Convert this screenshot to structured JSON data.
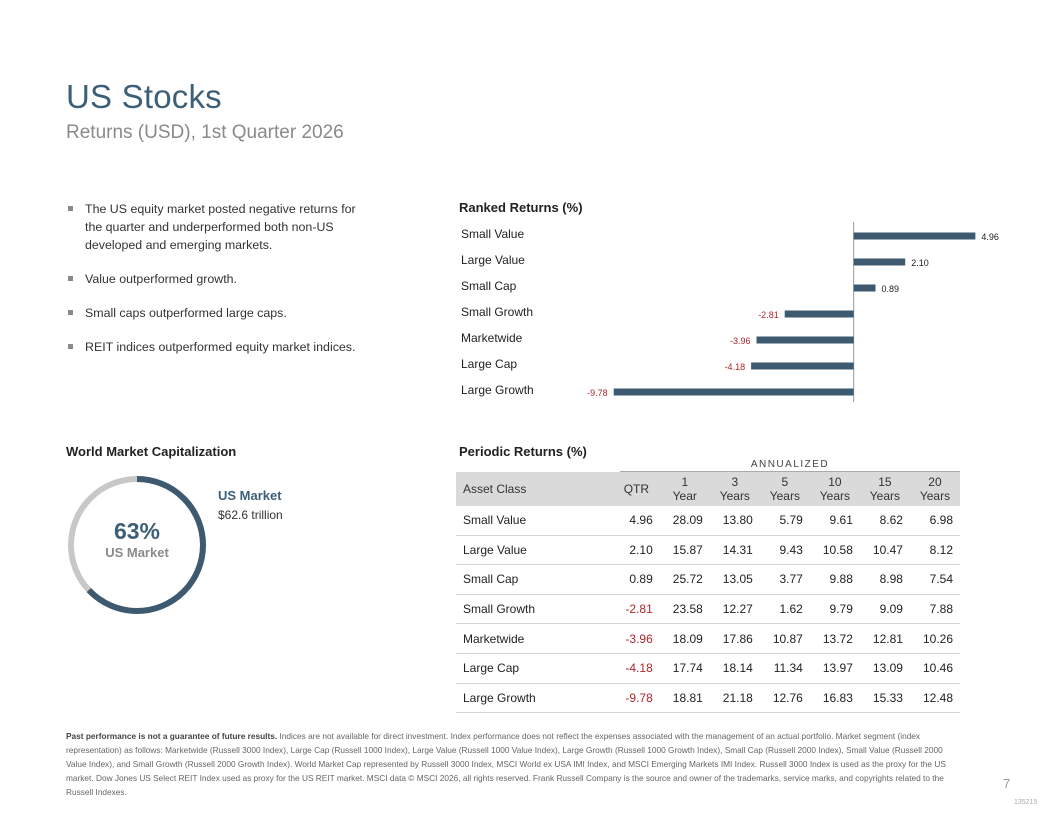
{
  "header": {
    "title": "US Stocks",
    "subtitle": "Returns (USD), 1st Quarter 2026"
  },
  "bullets": [
    "The US equity market posted negative returns for the quarter and underperformed both non-US developed and emerging markets.",
    "Value outperformed growth.",
    "Small caps outperformed large caps.",
    "REIT indices outperformed equity market indices."
  ],
  "ranked": {
    "title": "Ranked Returns (%)",
    "colors": {
      "bar": "#3d5a70",
      "positive_label": "#222222",
      "negative_label": "#b0262a",
      "axis": "#999999"
    }
  },
  "chart_data": {
    "type": "bar",
    "orientation": "horizontal",
    "title": "Ranked Returns (%)",
    "categories": [
      "Small Value",
      "Large Value",
      "Small Cap",
      "Small Growth",
      "Marketwide",
      "Large Cap",
      "Large Growth"
    ],
    "values": [
      4.96,
      2.1,
      0.89,
      -2.81,
      -3.96,
      -4.18,
      -9.78
    ],
    "value_labels": [
      "4.96",
      "2.10",
      "0.89",
      "-2.81",
      "-3.96",
      "-4.18",
      "-9.78"
    ],
    "xlim": [
      -10.5,
      5.8
    ]
  },
  "world_cap": {
    "title": "World Market Capitalization",
    "percent": 63,
    "percent_label": "63%",
    "center_label": "US Market",
    "legend_name": "US Market",
    "legend_value": "$62.6 trillion",
    "colors": {
      "us": "#3d5a70",
      "rest": "#c8c8c8"
    }
  },
  "periodic": {
    "title": "Periodic Returns (%)",
    "annualized_label": "ANNUALIZED",
    "headers": [
      {
        "l1": "Asset Class",
        "l2": ""
      },
      {
        "l1": "QTR",
        "l2": ""
      },
      {
        "l1": "1",
        "l2": "Year"
      },
      {
        "l1": "3",
        "l2": "Years"
      },
      {
        "l1": "5",
        "l2": "Years"
      },
      {
        "l1": "10",
        "l2": "Years"
      },
      {
        "l1": "15",
        "l2": "Years"
      },
      {
        "l1": "20",
        "l2": "Years"
      }
    ],
    "rows": [
      {
        "name": "Small Value",
        "cells": [
          "4.96",
          "28.09",
          "13.80",
          "5.79",
          "9.61",
          "8.62",
          "6.98"
        ]
      },
      {
        "name": "Large Value",
        "cells": [
          "2.10",
          "15.87",
          "14.31",
          "9.43",
          "10.58",
          "10.47",
          "8.12"
        ]
      },
      {
        "name": "Small Cap",
        "cells": [
          "0.89",
          "25.72",
          "13.05",
          "3.77",
          "9.88",
          "8.98",
          "7.54"
        ]
      },
      {
        "name": "Small Growth",
        "cells": [
          "-2.81",
          "23.58",
          "12.27",
          "1.62",
          "9.79",
          "9.09",
          "7.88"
        ]
      },
      {
        "name": "Marketwide",
        "cells": [
          "-3.96",
          "18.09",
          "17.86",
          "10.87",
          "13.72",
          "12.81",
          "10.26"
        ]
      },
      {
        "name": "Large Cap",
        "cells": [
          "-4.18",
          "17.74",
          "18.14",
          "11.34",
          "13.97",
          "13.09",
          "10.46"
        ]
      },
      {
        "name": "Large Growth",
        "cells": [
          "-9.78",
          "18.81",
          "21.18",
          "12.76",
          "16.83",
          "15.33",
          "12.48"
        ]
      }
    ]
  },
  "footnote": {
    "bold": "Past performance is not a guarantee of future results.",
    "text": " Indices are not available for direct investment. Index performance does not reflect the expenses associated with the management of an actual portfolio. Market segment (index representation) as follows: Marketwide (Russell 3000 Index), Large Cap (Russell 1000 Index), Large Value (Russell 1000 Value Index), Large Growth (Russell 1000 Growth Index), Small Cap (Russell 2000 Index), Small Value (Russell 2000 Value Index), and Small Growth (Russell 2000 Growth Index). World Market Cap represented by Russell 3000 Index, MSCI World ex USA IMI Index, and MSCI Emerging Markets IMI Index. Russell 3000 Index is used as the proxy for the US market. Dow Jones US Select REIT Index used as proxy for the US REIT market. MSCI data © MSCI 2026, all rights reserved. Frank Russell Company is the source and owner of the trademarks, service marks, and copyrights related to the Russell Indexes."
  },
  "page": {
    "number": "7",
    "doc_id": "135215"
  }
}
